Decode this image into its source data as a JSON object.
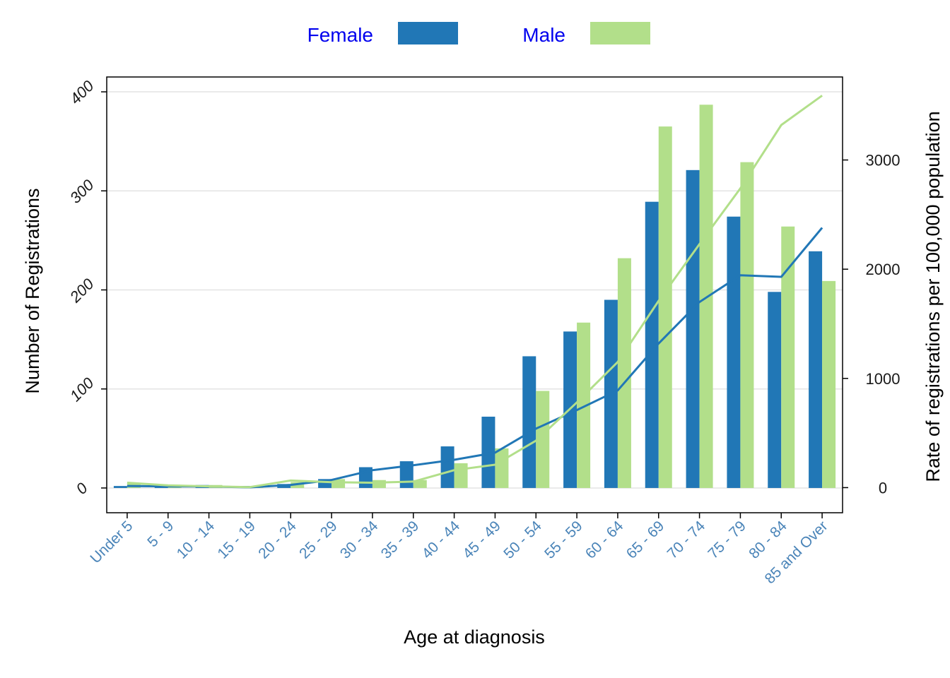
{
  "chart_data": {
    "type": "bar",
    "categories": [
      "Under 5",
      "5 - 9",
      "10 - 14",
      "15 - 19",
      "20 - 24",
      "25 - 29",
      "30 - 34",
      "35 - 39",
      "40 - 44",
      "45 - 49",
      "50 - 54",
      "55 - 59",
      "60 - 64",
      "65 - 69",
      "70 - 74",
      "75 - 79",
      "80 - 84",
      "85 and Over"
    ],
    "series": [
      {
        "name": "Female",
        "color": "#2177b6",
        "values": [
          2,
          3,
          3,
          2,
          4,
          9,
          21,
          27,
          42,
          72,
          133,
          158,
          190,
          289,
          321,
          274,
          198,
          239
        ],
        "rate": [
          15,
          12,
          10,
          3,
          25,
          70,
          160,
          205,
          255,
          320,
          540,
          710,
          890,
          1320,
          1700,
          1945,
          1930,
          2380
        ]
      },
      {
        "name": "Male",
        "color": "#b2df8a",
        "values": [
          5,
          3,
          3,
          2,
          6,
          9,
          8,
          8,
          25,
          40,
          98,
          167,
          232,
          365,
          387,
          329,
          264,
          209
        ],
        "rate": [
          45,
          20,
          12,
          5,
          65,
          50,
          45,
          55,
          160,
          210,
          430,
          780,
          1150,
          1710,
          2230,
          2740,
          3320,
          3590
        ]
      }
    ],
    "xlabel": "Age at diagnosis",
    "ylabel": "Number of Registrations",
    "y2label": "Rate of registrations per 100,000 population",
    "ylim": [
      -25,
      415
    ],
    "y2lim": [
      -230,
      3760
    ],
    "yticks": [
      0,
      100,
      200,
      300,
      400
    ],
    "y2ticks": [
      0,
      1000,
      2000,
      3000
    ],
    "grid": "horizontal",
    "legend_position": "top-center"
  }
}
